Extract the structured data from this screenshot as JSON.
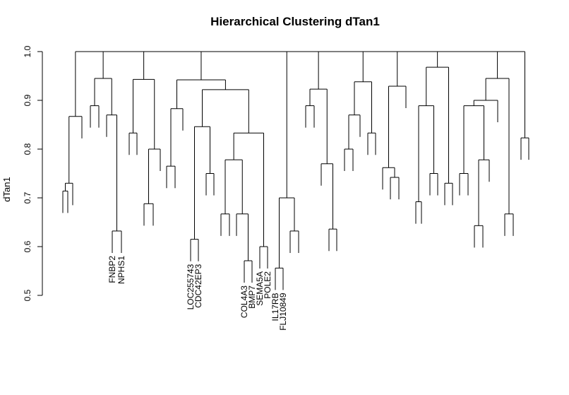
{
  "chart_data": {
    "type": "dendrogram",
    "title": "Hierarchical Clustering dTan1",
    "ylabel": "dTan1",
    "ylim": [
      0.5,
      1.0
    ],
    "yticks": [
      "0.5",
      "0.6",
      "0.7",
      "0.8",
      "0.9",
      "1.0"
    ],
    "labeled_leaves": [
      "FNBP2",
      "NPHS1",
      "LOC255743",
      "CDC42EP3",
      "COL4A3",
      "BMP7",
      "SEMA5A",
      "POLE2",
      "IL17RB",
      "FLJ10849"
    ],
    "merge_heights": [
      1.0,
      0.968,
      0.945,
      0.943,
      0.942,
      0.938,
      0.929,
      0.923,
      0.922,
      0.9,
      0.889,
      0.889,
      0.889,
      0.883,
      0.87,
      0.867,
      0.846,
      0.833,
      0.833,
      0.833,
      0.823,
      0.8,
      0.8,
      0.778,
      0.778,
      0.77,
      0.765,
      0.762,
      0.75,
      0.75,
      0.75,
      0.742,
      0.73,
      0.714,
      0.7,
      0.692,
      0.688,
      0.667,
      0.667,
      0.667,
      0.643,
      0.636,
      0.632,
      0.632,
      0.615,
      0.6,
      0.571,
      0.556
    ]
  }
}
